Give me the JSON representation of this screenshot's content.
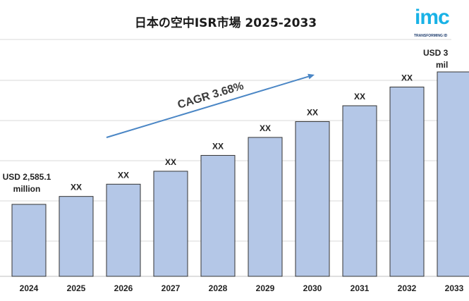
{
  "chart_data": {
    "type": "bar",
    "title": "日本の空中ISR市場 2025-2033",
    "categories": [
      "2024",
      "2025",
      "2026",
      "2027",
      "2028",
      "2029",
      "2030",
      "2031",
      "2032",
      "2033"
    ],
    "values": [
      100,
      111,
      128,
      146,
      168,
      193,
      215,
      237,
      263,
      284
    ],
    "data_labels": [
      "USD 2,585.1 million",
      "XX",
      "XX",
      "XX",
      "XX",
      "XX",
      "XX",
      "XX",
      "XX",
      "USD 3"
    ],
    "data_labels_line2": [
      "",
      "",
      "",
      "",
      "",
      "",
      "",
      "",
      "",
      "mil"
    ],
    "annotation": "CAGR 3.68%",
    "bar_color": "#b4c7e7",
    "bar_stroke": "#333333",
    "arrow_color": "#4a86c5",
    "grid": true,
    "grid_color": "#d9d9d9",
    "ylim": [
      0,
      300
    ]
  },
  "logo": {
    "mark": "imc",
    "tagline": "TRANSFORMING ID"
  }
}
